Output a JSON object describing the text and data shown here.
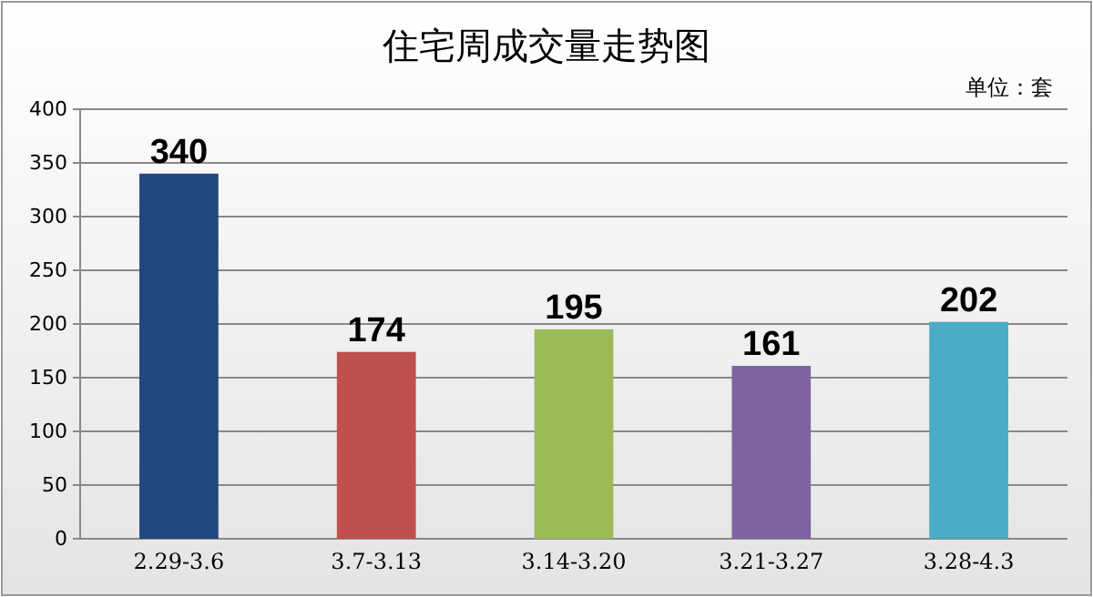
{
  "chart_data": {
    "type": "bar",
    "title": "住宅周成交量走势图",
    "annotations": [
      "单位：套"
    ],
    "categories": [
      "2.29-3.6",
      "3.7-3.13",
      "3.14-3.20",
      "3.21-3.27",
      "3.28-4.3"
    ],
    "values": [
      340,
      174,
      195,
      161,
      202
    ],
    "colors": [
      "#1f497d",
      "#c0504d",
      "#9bbb59",
      "#8064a2",
      "#4bacc6"
    ],
    "ylim": [
      0,
      400
    ],
    "yticks": [
      0,
      50,
      100,
      150,
      200,
      250,
      300,
      350,
      400
    ],
    "grid": "y",
    "data_labels": true
  }
}
